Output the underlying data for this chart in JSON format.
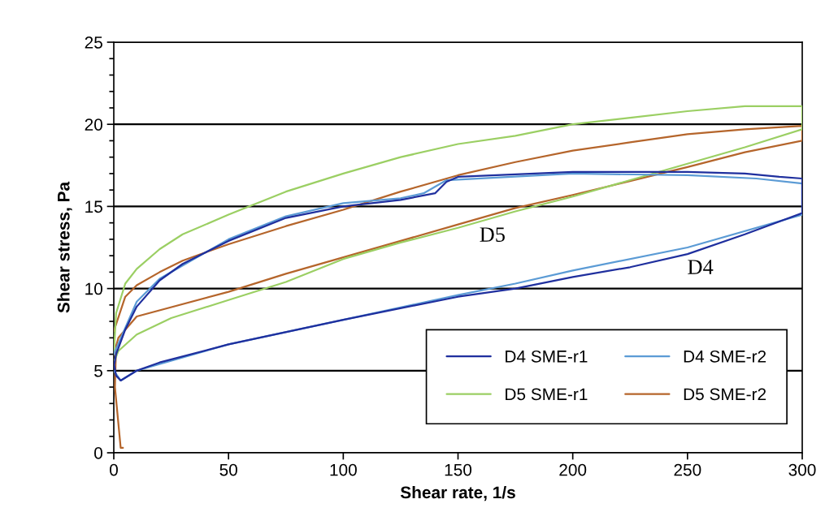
{
  "chart_data": {
    "type": "line",
    "xlabel": "Shear rate, 1/s",
    "ylabel": "Shear stress, Pa",
    "xlim": [
      0,
      300
    ],
    "ylim": [
      0,
      25
    ],
    "xticks": [
      0,
      50,
      100,
      150,
      200,
      250,
      300
    ],
    "yticks": [
      0,
      5,
      10,
      15,
      20,
      25
    ],
    "grid": "y",
    "legend": "bottom right",
    "marker": "none",
    "line_style": "solid",
    "annotations": [
      "D5",
      "D4"
    ],
    "series": [
      {
        "name": "D4 SME-r1",
        "color": "#1f2f9e",
        "x": [
          0,
          1,
          5,
          10,
          20,
          30,
          50,
          75,
          100,
          125,
          140,
          145,
          150,
          200,
          250,
          275,
          290,
          300,
          300,
          275,
          250,
          225,
          200,
          175,
          150,
          100,
          50,
          20,
          10,
          3,
          1,
          0
        ],
        "values": [
          5.2,
          6,
          7.5,
          8.9,
          10.5,
          11.5,
          12.9,
          14.3,
          15.0,
          15.4,
          15.8,
          16.5,
          16.8,
          17.1,
          17.1,
          17,
          16.8,
          16.7,
          14.6,
          13.3,
          12.1,
          11.3,
          10.7,
          10,
          9.5,
          8.1,
          6.6,
          5.5,
          5,
          4.4,
          4.7,
          5.5
        ]
      },
      {
        "name": "D4 SME-r2",
        "color": "#5b9bd5",
        "x": [
          0,
          10,
          20,
          50,
          75,
          100,
          125,
          135,
          145,
          200,
          250,
          280,
          300,
          300,
          250,
          200,
          175,
          150,
          100,
          50,
          10,
          3,
          0
        ],
        "values": [
          6,
          9.2,
          10.6,
          13,
          14.4,
          15.2,
          15.5,
          15.8,
          16.6,
          17,
          16.9,
          16.7,
          16.4,
          14.5,
          12.5,
          11.1,
          10.3,
          9.6,
          8.1,
          6.6,
          5,
          4.4,
          5
        ]
      },
      {
        "name": "D5 SME-r1",
        "color": "#9bcf63",
        "x": [
          0,
          1,
          5,
          10,
          20,
          30,
          50,
          75,
          100,
          125,
          150,
          175,
          200,
          225,
          250,
          275,
          300,
          300,
          275,
          250,
          225,
          200,
          175,
          150,
          125,
          100,
          75,
          50,
          25,
          10,
          2,
          0
        ],
        "values": [
          6,
          8.5,
          10.3,
          11.2,
          12.4,
          13.3,
          14.5,
          15.9,
          17,
          18,
          18.8,
          19.3,
          20,
          20.4,
          20.8,
          21.1,
          21.1,
          19.7,
          18.6,
          17.6,
          16.6,
          15.6,
          14.7,
          13.7,
          12.8,
          11.8,
          10.4,
          9.3,
          8.2,
          7.2,
          6.2,
          5.5
        ]
      },
      {
        "name": "D5 SME-r2",
        "color": "#b5652b",
        "x": [
          0,
          5,
          10,
          20,
          30,
          50,
          75,
          100,
          125,
          150,
          175,
          200,
          225,
          250,
          275,
          300,
          300,
          275,
          250,
          200,
          175,
          150,
          100,
          75,
          50,
          10,
          2,
          1,
          0.5,
          3,
          4
        ],
        "values": [
          7.4,
          9.5,
          10.2,
          11,
          11.7,
          12.7,
          13.8,
          14.8,
          15.9,
          16.9,
          17.7,
          18.4,
          18.9,
          19.4,
          19.7,
          19.9,
          19,
          18.3,
          17.4,
          15.7,
          14.9,
          13.9,
          11.9,
          10.9,
          9.8,
          8.3,
          7,
          6.5,
          4,
          0.3,
          0.3
        ]
      }
    ]
  }
}
